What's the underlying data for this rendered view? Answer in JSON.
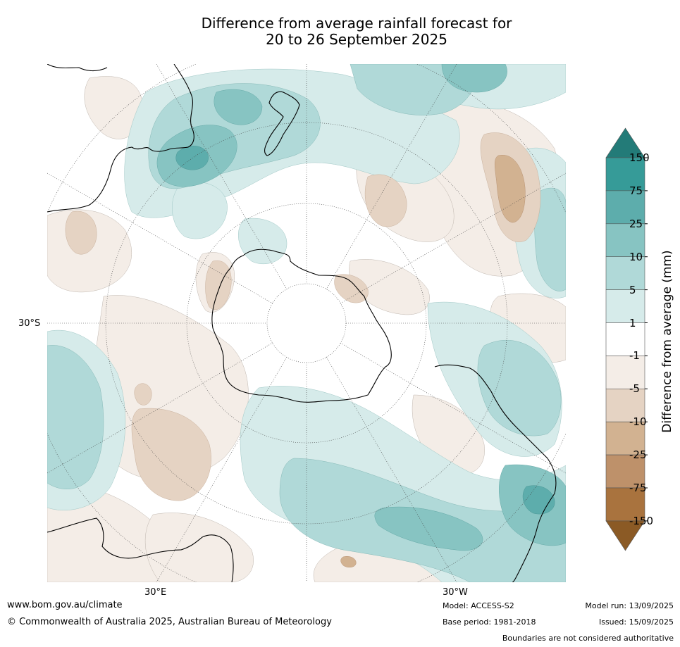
{
  "title_line1": "Difference from average rainfall forecast for",
  "title_line2": "20 to 26 September 2025",
  "map": {
    "projection": "south-polar-stereographic",
    "lat_label": "30°S",
    "lon_label_left": "30°E",
    "lon_label_right": "30°W"
  },
  "colorbar": {
    "title": "Difference from average (mm)",
    "ticks": [
      "150",
      "75",
      "25",
      "10",
      "5",
      "1",
      "-1",
      "-5",
      "-10",
      "-25",
      "-75",
      "-150"
    ],
    "colors": {
      "gt150": "#237b78",
      "b75_150": "#369b98",
      "b25_75": "#5dadac",
      "b10_25": "#87c4c2",
      "b5_10": "#b0d9d8",
      "b1_5": "#d6ebea",
      "bm1_1": "#ffffff",
      "bm5_m1": "#f4ede7",
      "bm10_m5": "#e5d3c3",
      "bm25_m10": "#d2b291",
      "bm75_m25": "#be916a",
      "bm150_m75": "#a9733e",
      "lt_m150": "#8b5a25"
    }
  },
  "footer": {
    "url": "www.bom.gov.au/climate",
    "copyright": "© Commonwealth of Australia 2025, Australian Bureau of Meteorology",
    "model": "Model: ACCESS-S2",
    "base_period": "Base period: 1981-2018",
    "model_run": "Model run: 13/09/2025",
    "issued": "Issued: 15/09/2025",
    "disclaimer": "Boundaries are not considered authoritative"
  }
}
